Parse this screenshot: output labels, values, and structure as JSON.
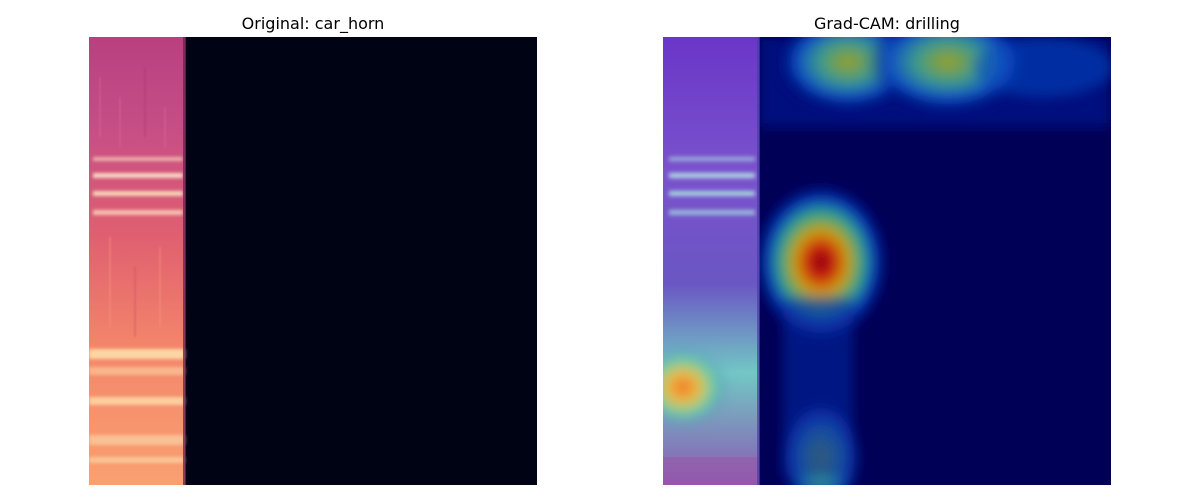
{
  "panels": [
    {
      "title": "Original: car_horn",
      "image": "spectrogram-magma"
    },
    {
      "title": "Grad-CAM: drilling",
      "image": "gradcam-jet-overlay"
    }
  ],
  "colors": {
    "background": "#ffffff",
    "spectrogram_empty": "#000314",
    "cam_background": "#000055",
    "cam_hotspot": "#7f0000"
  }
}
